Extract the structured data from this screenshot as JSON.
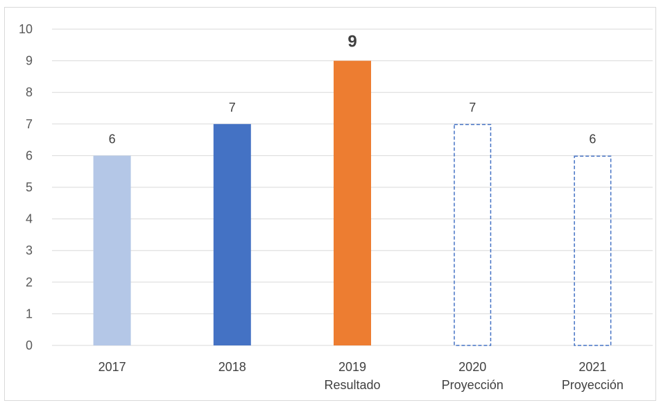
{
  "chart_data": {
    "type": "bar",
    "categories": [
      [
        "2017"
      ],
      [
        "2018"
      ],
      [
        "2019",
        "Resultado"
      ],
      [
        "2020",
        "Proyección"
      ],
      [
        "2021",
        "Proyección"
      ]
    ],
    "values": [
      6,
      7,
      9,
      7,
      6
    ],
    "data_labels": [
      "6",
      "7",
      "9",
      "7",
      "6"
    ],
    "bar_styles": [
      {
        "fill": "#b4c7e7",
        "dashed": false,
        "bold_label": false
      },
      {
        "fill": "#4472c4",
        "dashed": false,
        "bold_label": false
      },
      {
        "fill": "#ed7d31",
        "dashed": false,
        "bold_label": true
      },
      {
        "fill": "none",
        "stroke": "#4472c4",
        "dashed": true,
        "bold_label": false
      },
      {
        "fill": "none",
        "stroke": "#4472c4",
        "dashed": true,
        "bold_label": false
      }
    ],
    "y_ticks": [
      "0",
      "1",
      "2",
      "3",
      "4",
      "5",
      "6",
      "7",
      "8",
      "9",
      "10"
    ],
    "y_tick_values": [
      0,
      1,
      2,
      3,
      4,
      5,
      6,
      7,
      8,
      9,
      10
    ],
    "ylim": [
      0,
      10
    ],
    "grid": true,
    "legend": "none",
    "gridline_color": "#d9d9d9"
  }
}
